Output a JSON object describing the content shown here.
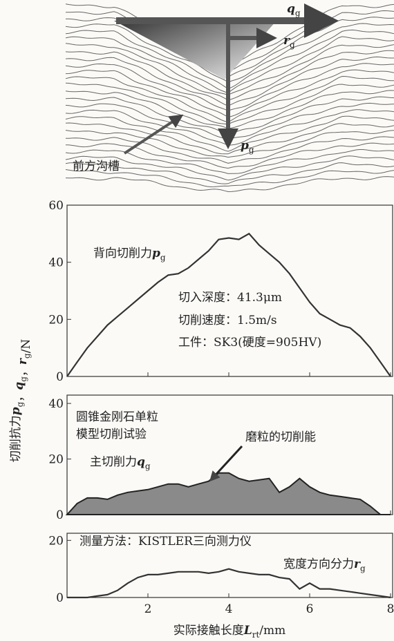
{
  "diagram": {
    "labels": [
      {
        "symbol": "q",
        "sub": "g"
      },
      {
        "symbol": "r",
        "sub": "g"
      },
      {
        "symbol": "p",
        "sub": "g"
      },
      {
        "text": "前方沟槽"
      }
    ]
  },
  "chart_data": [
    {
      "type": "line",
      "color": "#333333",
      "x": [
        0,
        0.25,
        0.5,
        0.75,
        1,
        1.25,
        1.5,
        1.75,
        2,
        2.25,
        2.5,
        2.75,
        3,
        3.25,
        3.5,
        3.75,
        4,
        4.25,
        4.5,
        4.75,
        5,
        5.25,
        5.5,
        5.75,
        6,
        6.25,
        6.5,
        6.75,
        7,
        7.25,
        7.5,
        7.75,
        8
      ],
      "values": [
        0,
        5,
        10,
        14,
        18,
        21,
        24,
        27,
        30,
        33,
        35.5,
        36,
        38,
        41,
        44,
        48,
        48.5,
        48,
        50,
        46,
        43,
        40,
        36,
        31,
        26,
        22,
        20,
        18,
        17,
        14,
        10,
        5,
        0
      ],
      "xlim": [
        0,
        8
      ],
      "ylim": [
        0,
        60
      ],
      "yticks": [
        0,
        20,
        40,
        60
      ],
      "annotations": [
        {
          "text": "背向切削力",
          "symbol": "p",
          "sub": "g"
        },
        {
          "text": "切入深度：41.3μm"
        },
        {
          "text": "切削速度：1.5m/s"
        },
        {
          "text": "工件：SK3(硬度=905HV)"
        }
      ]
    },
    {
      "type": "area",
      "color": "#8a8a8a",
      "x": [
        0,
        0.25,
        0.5,
        0.75,
        1,
        1.25,
        1.5,
        1.75,
        2,
        2.25,
        2.5,
        2.75,
        3,
        3.25,
        3.5,
        3.75,
        4,
        4.25,
        4.5,
        4.75,
        5,
        5.25,
        5.5,
        5.75,
        6,
        6.25,
        6.5,
        6.75,
        7,
        7.25,
        7.5,
        7.75,
        8
      ],
      "values": [
        0,
        4,
        6,
        6,
        5.5,
        7,
        8,
        8.5,
        9,
        10,
        11,
        11,
        10,
        11,
        12,
        15,
        15,
        13,
        12,
        12.5,
        13,
        8,
        10,
        13,
        10,
        8,
        7,
        6.5,
        6,
        5.5,
        3,
        0,
        0
      ],
      "xlim": [
        0,
        8
      ],
      "ylim": [
        0,
        43
      ],
      "yticks": [
        0,
        20,
        40
      ],
      "ylabel": {
        "prefix": "切削抗力",
        "symbols": [
          [
            "p",
            "g"
          ],
          [
            "q",
            "g"
          ],
          [
            "r",
            "g"
          ]
        ],
        "sep": "，",
        "suffix": "/N"
      },
      "annotations": [
        {
          "text": "圆锥金刚石单粒"
        },
        {
          "text": "模型切削试验"
        },
        {
          "text": "主切削力",
          "symbol": "q",
          "sub": "g"
        },
        {
          "text": "磨粒的切削能"
        }
      ]
    },
    {
      "type": "line",
      "color": "#333333",
      "x": [
        0,
        0.25,
        0.5,
        0.75,
        1,
        1.25,
        1.5,
        1.75,
        2,
        2.25,
        2.5,
        2.75,
        3,
        3.25,
        3.5,
        3.75,
        4,
        4.25,
        4.5,
        4.75,
        5,
        5.25,
        5.5,
        5.75,
        6,
        6.25,
        6.5,
        6.75,
        7,
        7.25,
        7.5,
        7.75,
        8
      ],
      "values": [
        0,
        0,
        0,
        0.5,
        1,
        2.5,
        5,
        7,
        8,
        8,
        8.5,
        9,
        9,
        9,
        8.5,
        9,
        10,
        9,
        8.5,
        8,
        8,
        7,
        6.5,
        3,
        5,
        3,
        3,
        2.5,
        2,
        1.5,
        1,
        0.5,
        0
      ],
      "xlim": [
        0,
        8
      ],
      "ylim": [
        0,
        22.5
      ],
      "yticks": [
        0,
        20
      ],
      "xticks": [
        2,
        4,
        6,
        8
      ],
      "xlabel": {
        "text": "实际接触长度",
        "symbol": "L",
        "sub": "rt",
        "suffix": "/mm"
      },
      "annotations": [
        {
          "text": "测量方法：KISTLER三向测力仪"
        },
        {
          "text": "宽度方向分力",
          "symbol": "r",
          "sub": "g"
        }
      ]
    }
  ]
}
